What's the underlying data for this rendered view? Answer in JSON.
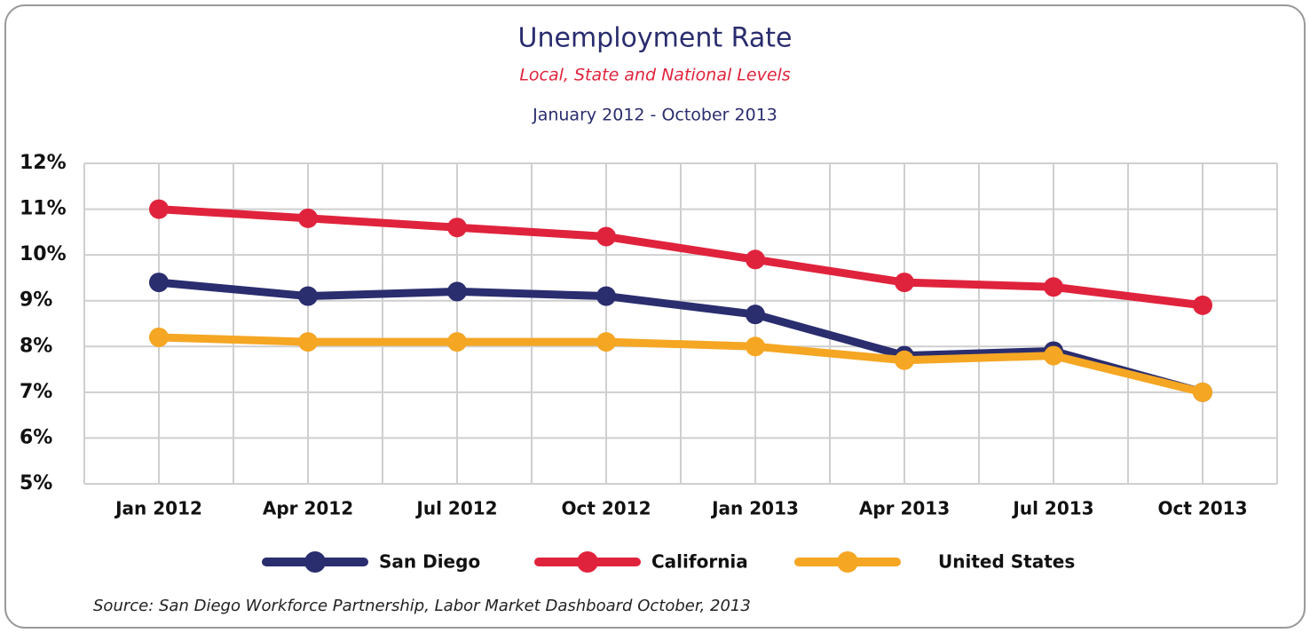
{
  "chart_data": {
    "type": "line",
    "title": "Unemployment Rate",
    "subtitle": "Local, State and National Levels",
    "date_range": "January 2012 - October 2013",
    "source": "Source: San Diego Workforce Partnership, Labor Market Dashboard October, 2013",
    "categories": [
      "Jan 2012",
      "Apr 2012",
      "Jul 2012",
      "Oct 2012",
      "Jan 2013",
      "Apr 2013",
      "Jul 2013",
      "Oct 2013"
    ],
    "series": [
      {
        "name": "San Diego",
        "color": "#2a2d6e",
        "values": [
          9.4,
          9.1,
          9.2,
          9.1,
          8.7,
          7.8,
          7.9,
          7.0
        ]
      },
      {
        "name": "California",
        "color": "#e0233c",
        "values": [
          11.0,
          10.8,
          10.6,
          10.4,
          9.9,
          9.4,
          9.3,
          8.9
        ]
      },
      {
        "name": "United States",
        "color": "#f5a623",
        "values": [
          8.2,
          8.1,
          8.1,
          8.1,
          8.0,
          7.7,
          7.8,
          7.0
        ]
      }
    ],
    "ylim": [
      5,
      12
    ],
    "yticks": [
      {
        "value": 5,
        "label": "5%"
      },
      {
        "value": 6,
        "label": "6%"
      },
      {
        "value": 7,
        "label": "7%"
      },
      {
        "value": 8,
        "label": "8%"
      },
      {
        "value": 9,
        "label": "9%"
      },
      {
        "value": 10,
        "label": "10%"
      },
      {
        "value": 11,
        "label": "11%"
      },
      {
        "value": 12,
        "label": "12%"
      }
    ],
    "grid": true,
    "legend": "bottom"
  }
}
